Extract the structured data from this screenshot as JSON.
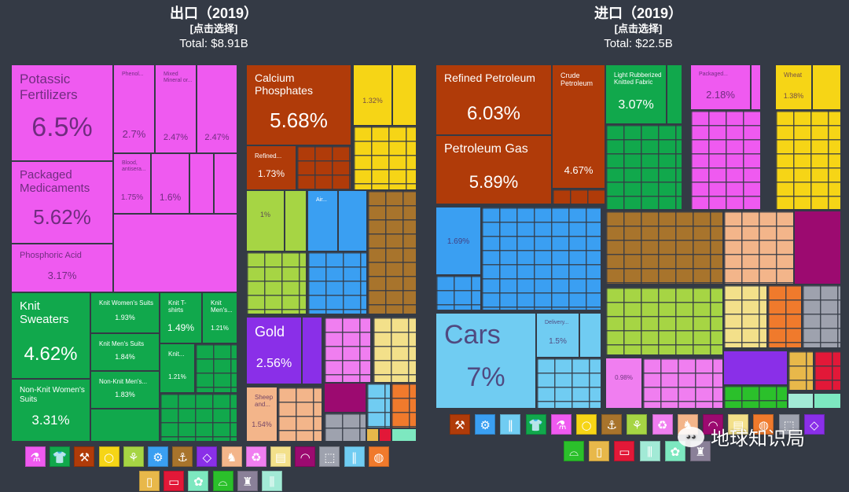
{
  "colors": {
    "chemicals": "#ef5af0",
    "textiles": "#11a84c",
    "minerals": "#b03b09",
    "food": "#f6d516",
    "vegetable": "#a6d544",
    "machines": "#3a9ff2",
    "metals": "#a8742c",
    "stone": "#8a2fe8",
    "animal": "#f3b58a",
    "paper": "#f07ef0",
    "wood": "#f3e08a",
    "instruments": "#9c0a70",
    "misc": "#9ea2ae",
    "transport": "#70ccf2",
    "plastics": "#f07a2c",
    "footwear": "#2bc02b",
    "weapons": "#e8b84a",
    "art": "#e21838",
    "animalhides": "#7de8c0",
    "stoneglass": "#a2ead6",
    "services": "#8a8098"
  },
  "chart_data": [
    {
      "type": "treemap",
      "title": "出口（2019）",
      "subtitle": "[点击选择]",
      "total": "Total: $8.91B",
      "tiles": [
        {
          "name": "Potassic Fertilizers",
          "value": "6.5%",
          "group": "chemicals"
        },
        {
          "name": "Packaged Medicaments",
          "value": "5.62%",
          "group": "chemicals"
        },
        {
          "name": "Phosphoric Acid",
          "value": "3.17%",
          "group": "chemicals"
        },
        {
          "name": "Phenol...",
          "value": "2.7%",
          "group": "chemicals"
        },
        {
          "name": "Mixed Mineral or...",
          "value": "2.47%",
          "group": "chemicals"
        },
        {
          "name": "",
          "value": "2.47%",
          "group": "chemicals"
        },
        {
          "name": "Blood, antisera...",
          "value": "1.75%",
          "group": "chemicals"
        },
        {
          "name": "",
          "value": "1.6%",
          "group": "chemicals"
        },
        {
          "name": "Calcium Phosphates",
          "value": "5.68%",
          "group": "minerals"
        },
        {
          "name": "Refined...",
          "value": "1.73%",
          "group": "minerals"
        },
        {
          "name": "",
          "value": "1.32%",
          "group": "food"
        },
        {
          "name": "",
          "value": "1%",
          "group": "vegetable"
        },
        {
          "name": "Air...",
          "value": "",
          "group": "machines"
        },
        {
          "name": "Knit Sweaters",
          "value": "4.62%",
          "group": "textiles"
        },
        {
          "name": "Non-Knit Women's Suits",
          "value": "3.31%",
          "group": "textiles"
        },
        {
          "name": "Knit Women's Suits",
          "value": "1.93%",
          "group": "textiles"
        },
        {
          "name": "Knit Men's Suits",
          "value": "1.84%",
          "group": "textiles"
        },
        {
          "name": "Non-Knit Men's...",
          "value": "1.83%",
          "group": "textiles"
        },
        {
          "name": "Knit T-shirts",
          "value": "1.49%",
          "group": "textiles"
        },
        {
          "name": "Knit Men's...",
          "value": "1.21%",
          "group": "textiles"
        },
        {
          "name": "Knit...",
          "value": "1.21%",
          "group": "textiles"
        },
        {
          "name": "Gold",
          "value": "2.56%",
          "group": "stone"
        },
        {
          "name": "Sheep and...",
          "value": "1.54%",
          "group": "animal"
        }
      ]
    },
    {
      "type": "treemap",
      "title": "进口（2019）",
      "subtitle": "[点击选择]",
      "total": "Total: $22.5B",
      "tiles": [
        {
          "name": "Refined Petroleum",
          "value": "6.03%",
          "group": "minerals"
        },
        {
          "name": "Petroleum Gas",
          "value": "5.89%",
          "group": "minerals"
        },
        {
          "name": "Crude Petroleum",
          "value": "4.67%",
          "group": "minerals"
        },
        {
          "name": "Light Rubberized Knitted Fabric",
          "value": "3.07%",
          "group": "textiles"
        },
        {
          "name": "Packaged...",
          "value": "2.18%",
          "group": "chemicals"
        },
        {
          "name": "Wheat",
          "value": "1.38%",
          "group": "food"
        },
        {
          "name": "",
          "value": "1.69%",
          "group": "machines"
        },
        {
          "name": "Cars",
          "value": "7%",
          "group": "transport"
        },
        {
          "name": "Delivery...",
          "value": "1.5%",
          "group": "transport"
        },
        {
          "name": "",
          "value": "0.98%",
          "group": "paper"
        }
      ]
    }
  ],
  "legend_export": [
    "chemicals",
    "textiles",
    "minerals",
    "food",
    "vegetable",
    "machines",
    "metals",
    "stone",
    "animal",
    "paper",
    "wood",
    "instruments",
    "misc",
    "transport",
    "plastics",
    "weapons",
    "art",
    "animalhides",
    "footwear",
    "services",
    "stoneglass"
  ],
  "legend_import": [
    "minerals",
    "machines",
    "transport",
    "textiles",
    "chemicals",
    "food",
    "metals",
    "vegetable",
    "paper",
    "animal",
    "instruments",
    "wood",
    "plastics",
    "misc",
    "stone",
    "footwear",
    "weapons",
    "art",
    "stoneglass",
    "animalhides",
    "services"
  ],
  "watermark": "地球知识局"
}
